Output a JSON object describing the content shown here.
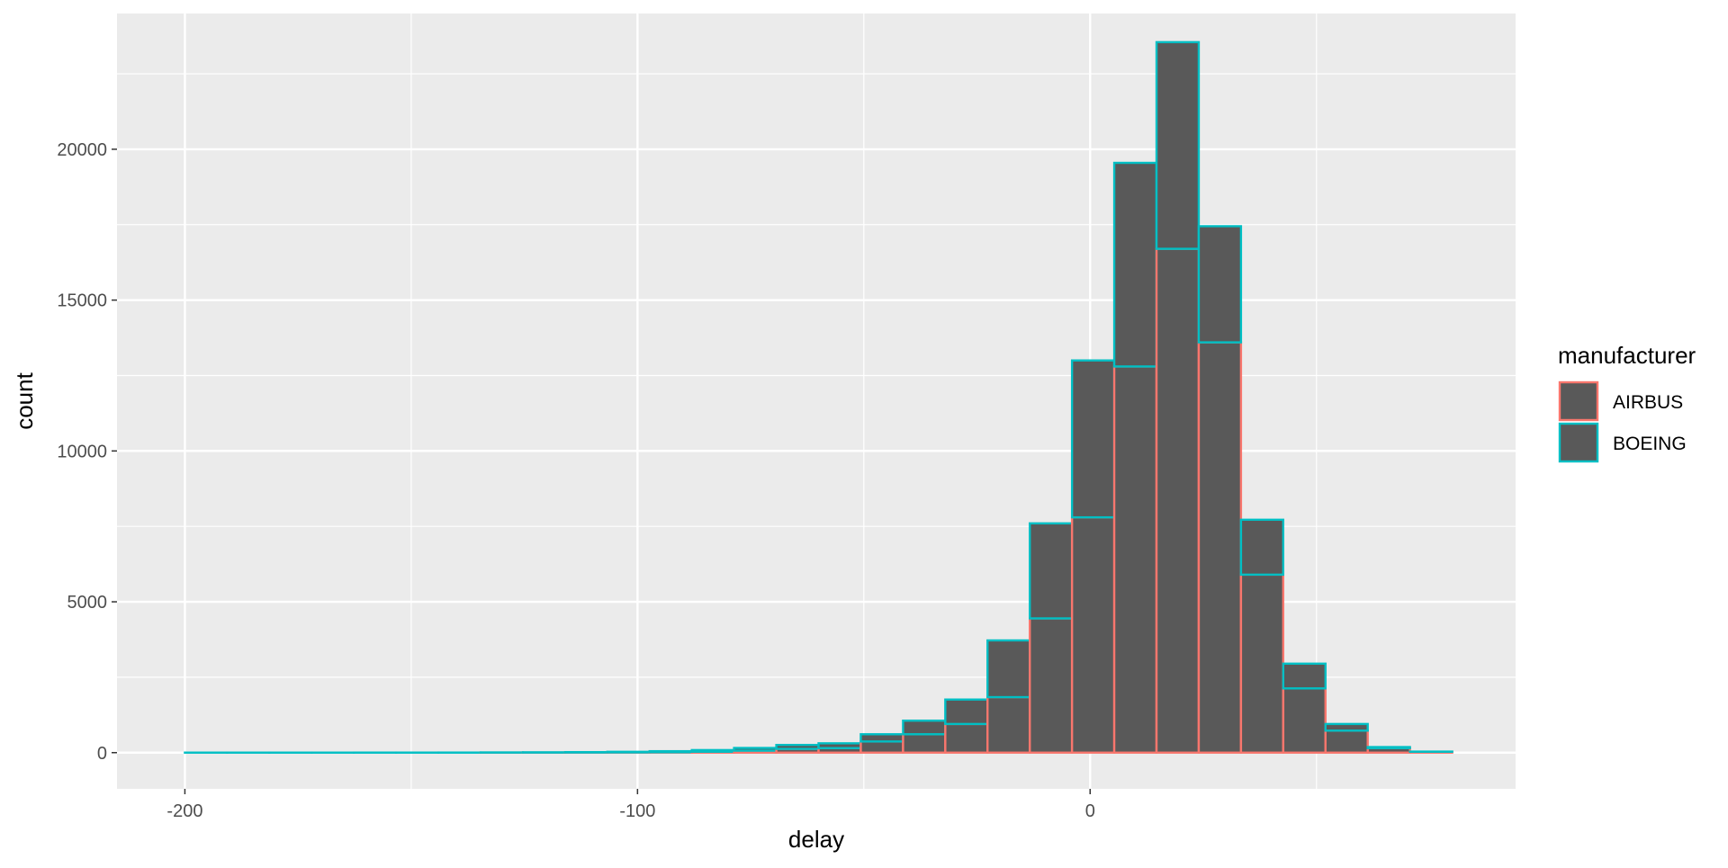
{
  "chart_data": {
    "type": "bar",
    "subtype": "stacked-histogram",
    "title": "",
    "xlabel": "delay",
    "ylabel": "count",
    "xlim": [
      -215,
      94
    ],
    "ylim": [
      -1200,
      24500
    ],
    "x_ticks": [
      -200,
      -100,
      0
    ],
    "y_ticks": [
      0,
      5000,
      10000,
      15000,
      20000
    ],
    "x_tick_labels": [
      "-200",
      "-100",
      "0"
    ],
    "y_tick_labels": [
      "0",
      "5000",
      "10000",
      "15000",
      "20000"
    ],
    "grid": true,
    "legend_position": "right",
    "bin_width": 9.33,
    "bin_starts": [
      -200.0,
      -190.67,
      -181.33,
      -172.0,
      -162.67,
      -153.33,
      -144.0,
      -134.67,
      -125.33,
      -116.0,
      -106.67,
      -97.33,
      -88.0,
      -78.67,
      -69.33,
      -60.0,
      -50.67,
      -41.33,
      -32.0,
      -22.67,
      -13.33,
      -4.0,
      5.33,
      14.67,
      24.0,
      33.33,
      42.67,
      52.0,
      61.33,
      70.67
    ],
    "series": [
      {
        "name": "AIRBUS",
        "color": "#F8766D",
        "values": [
          0,
          0,
          0,
          0,
          0,
          0,
          0,
          2,
          3,
          5,
          8,
          13,
          30,
          65,
          125,
          150,
          370,
          610,
          950,
          1840,
          4450,
          7800,
          12800,
          16700,
          13600,
          5900,
          2130,
          730,
          150,
          30
        ]
      },
      {
        "name": "BOEING",
        "color": "#00BFC4",
        "values": [
          1,
          1,
          1,
          1,
          2,
          2,
          3,
          5,
          8,
          12,
          20,
          35,
          55,
          90,
          130,
          160,
          240,
          450,
          810,
          1880,
          3150,
          5200,
          6750,
          6850,
          3850,
          1820,
          820,
          220,
          35,
          5
        ]
      }
    ],
    "style": {
      "panel_background": "#EBEBEB",
      "grid_color": "#FFFFFF",
      "bar_fill": "#595959",
      "tick_color": "#333333"
    }
  }
}
